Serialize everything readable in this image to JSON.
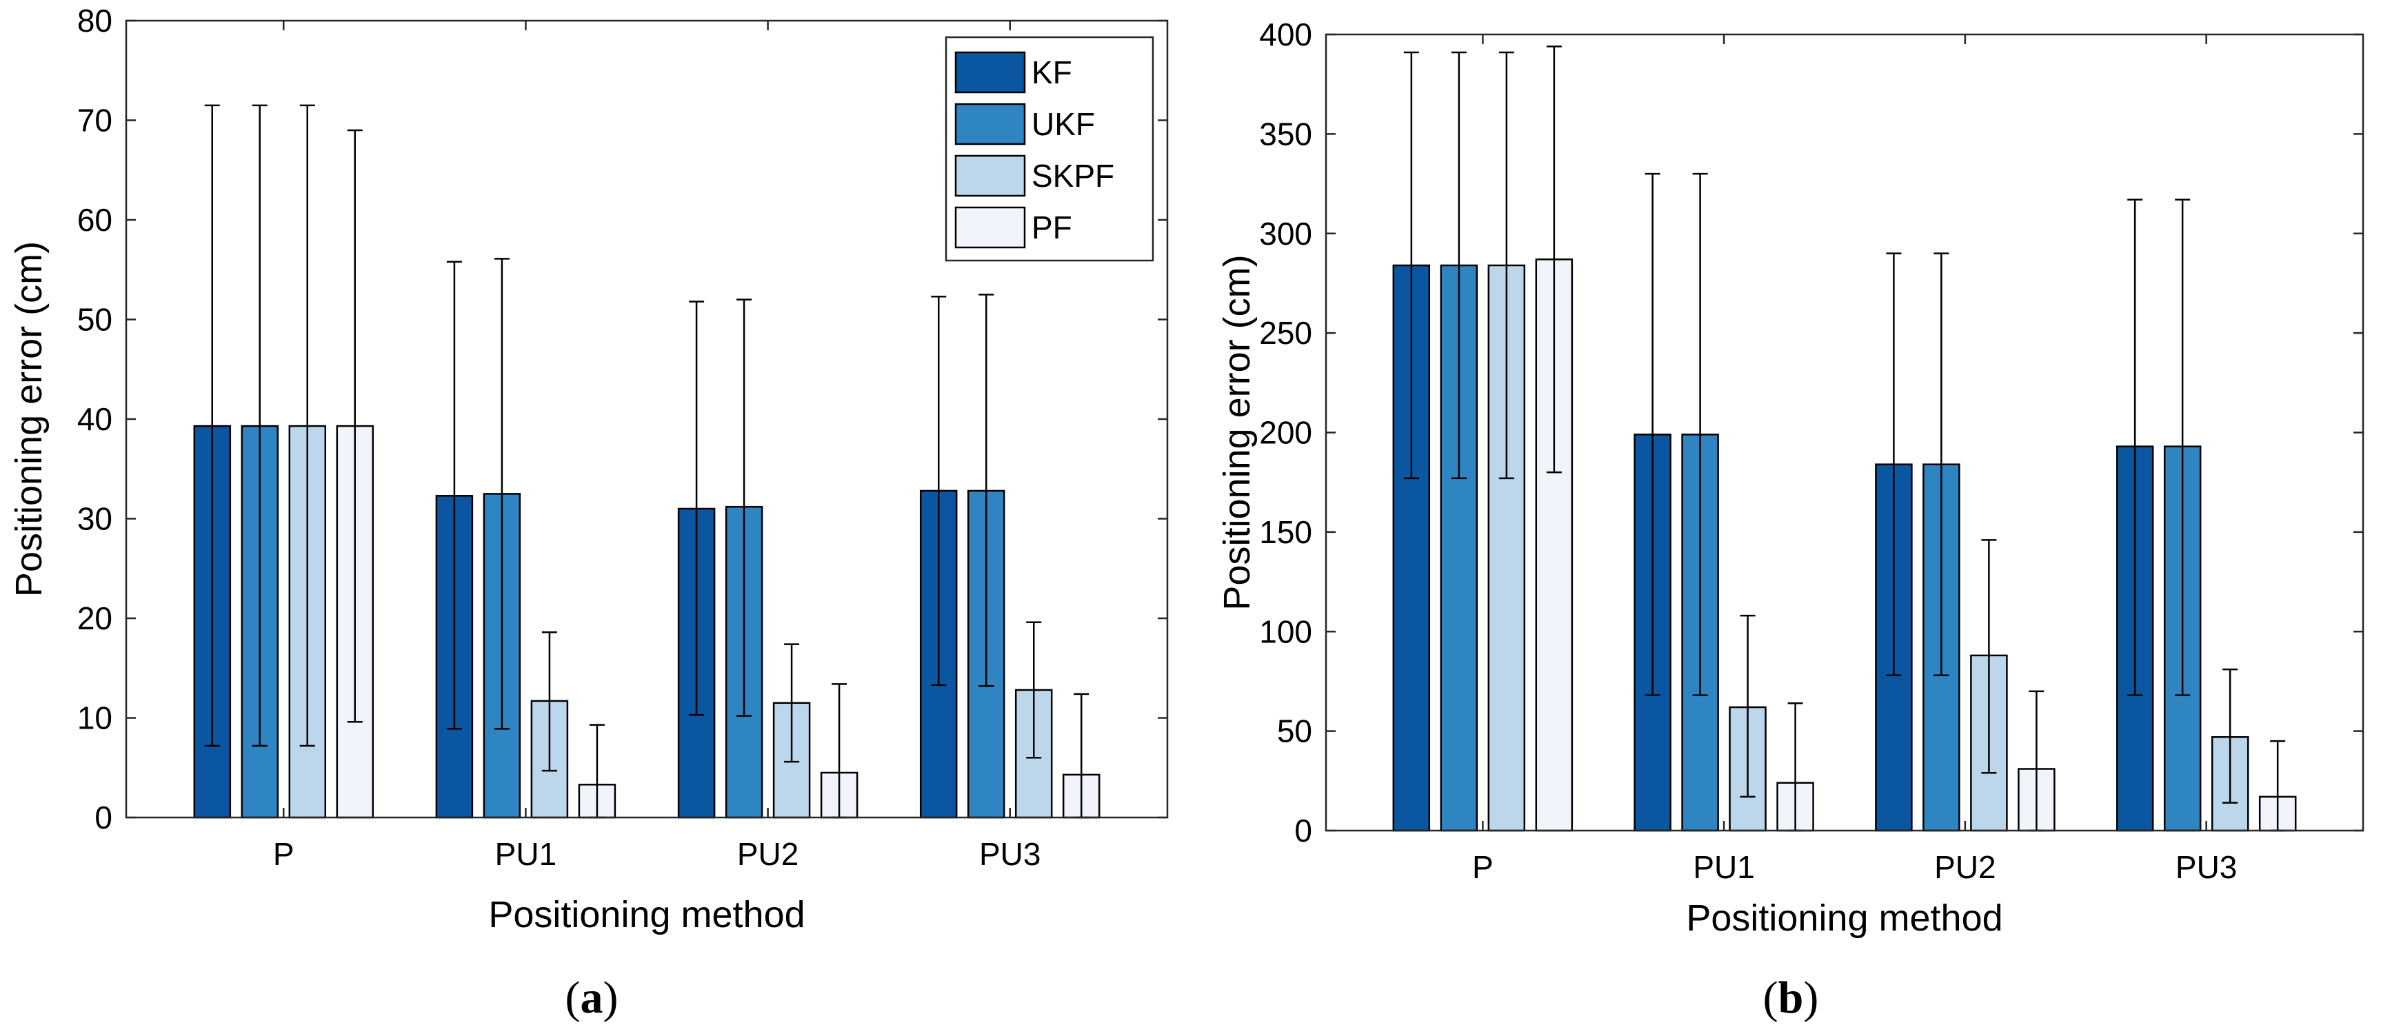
{
  "panels": [
    {
      "label_open": "(",
      "label_letter": "a",
      "label_close": ")"
    },
    {
      "label_open": "(",
      "label_letter": "b",
      "label_close": ")"
    }
  ],
  "colors": {
    "KF": "#0b56a0",
    "UKF": "#2f84c2",
    "SKPF": "#bcd6eb",
    "PF": "#f1f4fb",
    "edge": "#000000"
  },
  "chart_data": [
    {
      "type": "bar",
      "title": "",
      "xlabel": "Positioning method",
      "ylabel": "Positioning error (cm)",
      "ylim": [
        0,
        80
      ],
      "yticks": [
        0,
        10,
        20,
        30,
        40,
        50,
        60,
        70,
        80
      ],
      "categories": [
        "P",
        "PU1",
        "PU2",
        "PU3"
      ],
      "legend_position": "top-right",
      "grid": false,
      "error_bars": true,
      "series": [
        {
          "name": "KF",
          "values": [
            39.3,
            32.3,
            31.0,
            32.8
          ],
          "err_low": [
            7.2,
            8.9,
            10.3,
            13.3
          ],
          "err_high": [
            71.5,
            55.8,
            51.8,
            52.3
          ]
        },
        {
          "name": "UKF",
          "values": [
            39.3,
            32.5,
            31.2,
            32.8
          ],
          "err_low": [
            7.2,
            8.9,
            10.2,
            13.2
          ],
          "err_high": [
            71.5,
            56.1,
            52.0,
            52.5
          ]
        },
        {
          "name": "SKPF",
          "values": [
            39.3,
            11.7,
            11.5,
            12.8
          ],
          "err_low": [
            7.2,
            4.7,
            5.6,
            6.0
          ],
          "err_high": [
            71.5,
            18.6,
            17.4,
            19.6
          ]
        },
        {
          "name": "PF",
          "values": [
            39.3,
            3.3,
            4.5,
            4.3
          ],
          "err_low": [
            9.6,
            0.0,
            0.0,
            0.0
          ],
          "err_high": [
            69.0,
            9.3,
            13.4,
            12.4
          ]
        }
      ]
    },
    {
      "type": "bar",
      "title": "",
      "xlabel": "Positioning method",
      "ylabel": "Positioning error (cm)",
      "ylim": [
        0,
        400
      ],
      "yticks": [
        0,
        50,
        100,
        150,
        200,
        250,
        300,
        350,
        400
      ],
      "categories": [
        "P",
        "PU1",
        "PU2",
        "PU3"
      ],
      "grid": false,
      "error_bars": true,
      "series": [
        {
          "name": "KF",
          "values": [
            284,
            199,
            184,
            193
          ],
          "err_low": [
            177,
            68,
            78,
            68
          ],
          "err_high": [
            391,
            330,
            290,
            317
          ]
        },
        {
          "name": "UKF",
          "values": [
            284,
            199,
            184,
            193
          ],
          "err_low": [
            177,
            68,
            78,
            68
          ],
          "err_high": [
            391,
            330,
            290,
            317
          ]
        },
        {
          "name": "SKPF",
          "values": [
            284,
            62,
            88,
            47
          ],
          "err_low": [
            177,
            17,
            29,
            14
          ],
          "err_high": [
            391,
            108,
            146,
            81
          ]
        },
        {
          "name": "PF",
          "values": [
            287,
            24,
            31,
            17
          ],
          "err_low": [
            180,
            0,
            0,
            0
          ],
          "err_high": [
            394,
            64,
            70,
            45
          ]
        }
      ]
    }
  ]
}
